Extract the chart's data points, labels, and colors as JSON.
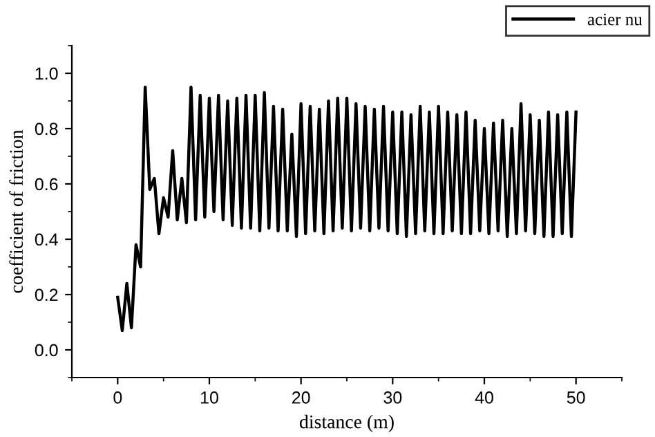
{
  "chart_data": {
    "type": "line",
    "xlabel": "distance (m)",
    "ylabel": "coefficient of friction",
    "xlim": [
      -5,
      55
    ],
    "ylim": [
      -0.1,
      1.1
    ],
    "xticks": [
      0,
      10,
      20,
      30,
      40,
      50
    ],
    "yticks": [
      {
        "value": 0,
        "label": "0.0"
      },
      0.2,
      0.4,
      0.6,
      0.8,
      {
        "value": 1,
        "label": "1.0"
      }
    ],
    "grid": false,
    "legend": "top right",
    "marker": "none",
    "line_style": "solid",
    "x": [
      0,
      0.5,
      1,
      1.5,
      2,
      2.5,
      3,
      3.5,
      4,
      4.5,
      5,
      5.5,
      6,
      6.5,
      7,
      7.5,
      8,
      8.5,
      9,
      9.5,
      10,
      10.5,
      11,
      11.5,
      12,
      12.5,
      13,
      13.5,
      14,
      14.5,
      15,
      15.5,
      16,
      16.5,
      17,
      17.5,
      18,
      18.5,
      19,
      19.5,
      20,
      20.5,
      21,
      21.5,
      22,
      22.5,
      23,
      23.5,
      24,
      24.5,
      25,
      25.5,
      26,
      26.5,
      27,
      27.5,
      28,
      28.5,
      29,
      29.5,
      30,
      30.5,
      31,
      31.5,
      32,
      32.5,
      33,
      33.5,
      34,
      34.5,
      35,
      35.5,
      36,
      36.5,
      37,
      37.5,
      38,
      38.5,
      39,
      39.5,
      40,
      40.5,
      41,
      41.5,
      42,
      42.5,
      43,
      43.5,
      44,
      44.5,
      45,
      45.5,
      46,
      46.5,
      47,
      47.5,
      48,
      48.5,
      49,
      49.5,
      50
    ],
    "series": [
      {
        "name": "acier nu",
        "color": "#000000",
        "values": [
          0.19,
          0.07,
          0.24,
          0.08,
          0.38,
          0.3,
          0.95,
          0.58,
          0.62,
          0.42,
          0.55,
          0.48,
          0.72,
          0.47,
          0.62,
          0.46,
          0.95,
          0.47,
          0.92,
          0.48,
          0.91,
          0.5,
          0.92,
          0.47,
          0.9,
          0.45,
          0.91,
          0.44,
          0.92,
          0.44,
          0.92,
          0.43,
          0.93,
          0.44,
          0.88,
          0.43,
          0.87,
          0.43,
          0.78,
          0.41,
          0.89,
          0.42,
          0.88,
          0.43,
          0.87,
          0.42,
          0.9,
          0.43,
          0.91,
          0.44,
          0.91,
          0.43,
          0.89,
          0.44,
          0.88,
          0.43,
          0.87,
          0.44,
          0.88,
          0.43,
          0.86,
          0.42,
          0.86,
          0.41,
          0.85,
          0.42,
          0.88,
          0.43,
          0.86,
          0.42,
          0.88,
          0.42,
          0.86,
          0.43,
          0.85,
          0.42,
          0.86,
          0.42,
          0.83,
          0.43,
          0.8,
          0.42,
          0.82,
          0.43,
          0.83,
          0.41,
          0.8,
          0.42,
          0.89,
          0.43,
          0.85,
          0.42,
          0.83,
          0.41,
          0.86,
          0.41,
          0.85,
          0.42,
          0.86,
          0.41,
          0.86
        ]
      }
    ]
  }
}
